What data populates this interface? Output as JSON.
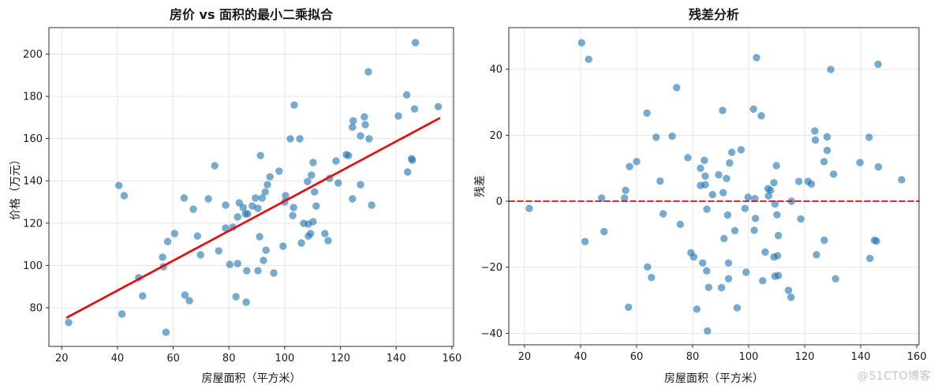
{
  "page": {
    "background": "#ffffff",
    "watermark": "@51CTO博客"
  },
  "chart_data": [
    {
      "type": "scatter",
      "title": "房价 vs 面积的最小二乘拟合",
      "xlabel": "房屋面积（平方米）",
      "ylabel": "价格（万元）",
      "xlim": [
        15.4,
        160.6
      ],
      "ylim": [
        61.7,
        212.5
      ],
      "xticks": [
        20,
        40,
        60,
        80,
        100,
        120,
        140,
        160
      ],
      "yticks": [
        80,
        100,
        120,
        140,
        160,
        180,
        200
      ],
      "grid": true,
      "legend": "none",
      "marker": {
        "color": "#1f77b4",
        "alpha": 0.62,
        "radius": 4.7
      },
      "points": [
        [
          22.5,
          73
        ],
        [
          40.5,
          137.8
        ],
        [
          41.6,
          77
        ],
        [
          42.4,
          133
        ],
        [
          47.6,
          94.2
        ],
        [
          49,
          85.6
        ],
        [
          56.2,
          103.9
        ],
        [
          56.5,
          99.4
        ],
        [
          57.4,
          68.4
        ],
        [
          58,
          111.3
        ],
        [
          60.5,
          115.1
        ],
        [
          63.9,
          131.9
        ],
        [
          64.2,
          86
        ],
        [
          65.8,
          83.3
        ],
        [
          67.2,
          126.6
        ],
        [
          68.7,
          113.9
        ],
        [
          69.8,
          105
        ],
        [
          72.6,
          131.5
        ],
        [
          74.9,
          147.2
        ],
        [
          76.3,
          106.9
        ],
        [
          78.8,
          128.5
        ],
        [
          78.8,
          117.7
        ],
        [
          80.3,
          100.5
        ],
        [
          81.4,
          118.1
        ],
        [
          82.5,
          85.2
        ],
        [
          83.1,
          122.9
        ],
        [
          83.1,
          100.9
        ],
        [
          83.7,
          129.6
        ],
        [
          85.1,
          127.4
        ],
        [
          85.9,
          124.4
        ],
        [
          86.2,
          82.6
        ],
        [
          86.4,
          97.5
        ],
        [
          86.7,
          124.4
        ],
        [
          88.4,
          128.1
        ],
        [
          89.5,
          131.9
        ],
        [
          90.4,
          127
        ],
        [
          90.4,
          97.5
        ],
        [
          91,
          113.6
        ],
        [
          91.3,
          152
        ],
        [
          91.9,
          131.9
        ],
        [
          92.4,
          102.4
        ],
        [
          93,
          134.8
        ],
        [
          93.3,
          107.2
        ],
        [
          93.8,
          138.2
        ],
        [
          94.7,
          141.9
        ],
        [
          96.1,
          96.4
        ],
        [
          98,
          144.6
        ],
        [
          99.4,
          109.1
        ],
        [
          100,
          130
        ],
        [
          100.3,
          133
        ],
        [
          102,
          159.9
        ],
        [
          102.9,
          123.6
        ],
        [
          103.2,
          127.4
        ],
        [
          103.4,
          175.9
        ],
        [
          105.4,
          159.9
        ],
        [
          106,
          110.6
        ],
        [
          106.8,
          119.9
        ],
        [
          108.2,
          139.7
        ],
        [
          108.5,
          119.6
        ],
        [
          108.5,
          113.9
        ],
        [
          109.3,
          115.1
        ],
        [
          109.6,
          142.7
        ],
        [
          110.2,
          148.7
        ],
        [
          110.2,
          120.7
        ],
        [
          110.7,
          134.8
        ],
        [
          111.3,
          128.1
        ],
        [
          114.4,
          115.1
        ],
        [
          115.6,
          111.7
        ],
        [
          116.1,
          141.2
        ],
        [
          118.4,
          149.4
        ],
        [
          119.2,
          139
        ],
        [
          122.1,
          152.4
        ],
        [
          122.9,
          152
        ],
        [
          124.3,
          165.4
        ],
        [
          124.3,
          131.5
        ],
        [
          124.6,
          168.4
        ],
        [
          127.2,
          161.3
        ],
        [
          127.2,
          138.2
        ],
        [
          128.6,
          170.3
        ],
        [
          128.9,
          166.6
        ],
        [
          130,
          191.6
        ],
        [
          130.3,
          159.9
        ],
        [
          131.2,
          128.5
        ],
        [
          140.8,
          170.7
        ],
        [
          143.8,
          180.7
        ],
        [
          144.1,
          144.2
        ],
        [
          145.5,
          150.5
        ],
        [
          145.8,
          149.8
        ],
        [
          146.6,
          174
        ],
        [
          146.9,
          205.4
        ],
        [
          155.1,
          175.1
        ]
      ],
      "lines": [
        {
          "name": "least-squares-fit-line",
          "color": "#ff0000",
          "width": 2.6,
          "dash": "none",
          "points": [
            [
              21.9,
              75.4
            ],
            [
              155.5,
              169.6
            ]
          ]
        }
      ]
    },
    {
      "type": "scatter",
      "title": "残差分析",
      "xlabel": "房屋面积（平方米）",
      "ylabel": "残差",
      "xlim": [
        14.4,
        160.8
      ],
      "ylim": [
        -43.5,
        52.6
      ],
      "xticks": [
        20,
        40,
        60,
        80,
        100,
        120,
        140,
        160
      ],
      "yticks": [
        -40,
        -20,
        0,
        20,
        40
      ],
      "grid": true,
      "legend": "none",
      "marker": {
        "color": "#1f77b4",
        "alpha": 0.62,
        "radius": 4.7
      },
      "points": [
        [
          21.7,
          -2.2
        ],
        [
          40.4,
          48
        ],
        [
          41.6,
          -12.2
        ],
        [
          42.9,
          43
        ],
        [
          47.5,
          1
        ],
        [
          48.4,
          -9.2
        ],
        [
          55.7,
          1
        ],
        [
          56.1,
          3.3
        ],
        [
          57.1,
          -32.1
        ],
        [
          57.5,
          10.5
        ],
        [
          60,
          12
        ],
        [
          63.7,
          26.7
        ],
        [
          63.9,
          -19.9
        ],
        [
          65.3,
          -23.1
        ],
        [
          67,
          19.4
        ],
        [
          68.4,
          6.1
        ],
        [
          69.5,
          -3.8
        ],
        [
          72.7,
          19.7
        ],
        [
          74.3,
          34.4
        ],
        [
          75.6,
          -7
        ],
        [
          78.3,
          13.2
        ],
        [
          79.4,
          -15.6
        ],
        [
          80.4,
          -16.9
        ],
        [
          81.5,
          -32.7
        ],
        [
          82.8,
          10
        ],
        [
          82.8,
          4.8
        ],
        [
          83.6,
          -18.7
        ],
        [
          84.2,
          12.4
        ],
        [
          84.5,
          7.6
        ],
        [
          84.5,
          5
        ],
        [
          85,
          -21.1
        ],
        [
          85.1,
          -2.4
        ],
        [
          85.3,
          -39.3
        ],
        [
          85.7,
          -26.1
        ],
        [
          87.1,
          2
        ],
        [
          89.3,
          8
        ],
        [
          90.3,
          -26.2
        ],
        [
          90.7,
          27.5
        ],
        [
          90.9,
          2.6
        ],
        [
          91.2,
          -11.3
        ],
        [
          92.1,
          6.9
        ],
        [
          92.5,
          -4.2
        ],
        [
          92.8,
          -18.7
        ],
        [
          92.8,
          -23.5
        ],
        [
          93.2,
          11.6
        ],
        [
          94,
          14.8
        ],
        [
          95.1,
          -8.9
        ],
        [
          95.9,
          -32.3
        ],
        [
          97.3,
          15.6
        ],
        [
          98.7,
          -2.2
        ],
        [
          99.1,
          -21.5
        ],
        [
          99.8,
          1.2
        ],
        [
          101.7,
          27.9
        ],
        [
          102,
          -8.8
        ],
        [
          102.2,
          0.8
        ],
        [
          102.4,
          -5.2
        ],
        [
          102.8,
          43.5
        ],
        [
          104.5,
          25.9
        ],
        [
          105,
          -24.1
        ],
        [
          105.9,
          -15.4
        ],
        [
          106.9,
          3.8
        ],
        [
          107.1,
          1.6
        ],
        [
          107.8,
          3.3
        ],
        [
          109,
          -16.9
        ],
        [
          109,
          5.6
        ],
        [
          109.4,
          -0.8
        ],
        [
          109.4,
          -22.7
        ],
        [
          109.9,
          10.8
        ],
        [
          110.1,
          -4.1
        ],
        [
          110.3,
          -16.5
        ],
        [
          110.6,
          -10.4
        ],
        [
          110.6,
          -22.5
        ],
        [
          114.2,
          -27
        ],
        [
          115.1,
          -29.1
        ],
        [
          115.3,
          0
        ],
        [
          117.9,
          6
        ],
        [
          118.6,
          -5.4
        ],
        [
          121.2,
          6
        ],
        [
          122.4,
          5.2
        ],
        [
          123.6,
          21.3
        ],
        [
          123.8,
          18.5
        ],
        [
          124.2,
          -16.2
        ],
        [
          126.9,
          12
        ],
        [
          127,
          -11.8
        ],
        [
          128,
          19.5
        ],
        [
          128,
          15.4
        ],
        [
          129.3,
          39.9
        ],
        [
          130.3,
          8.2
        ],
        [
          131,
          -23.5
        ],
        [
          139.7,
          11.7
        ],
        [
          143,
          19.4
        ],
        [
          143.3,
          -17.3
        ],
        [
          144.9,
          -11.8
        ],
        [
          145.6,
          -12.1
        ],
        [
          146.2,
          41.5
        ],
        [
          146.3,
          10.4
        ],
        [
          154.6,
          6.5
        ]
      ],
      "lines": [
        {
          "name": "zero-residual-line",
          "color": "#ff0000",
          "width": 1.8,
          "dash": "7,4",
          "points": [
            [
              14.4,
              0
            ],
            [
              160.8,
              0
            ]
          ]
        }
      ]
    }
  ]
}
